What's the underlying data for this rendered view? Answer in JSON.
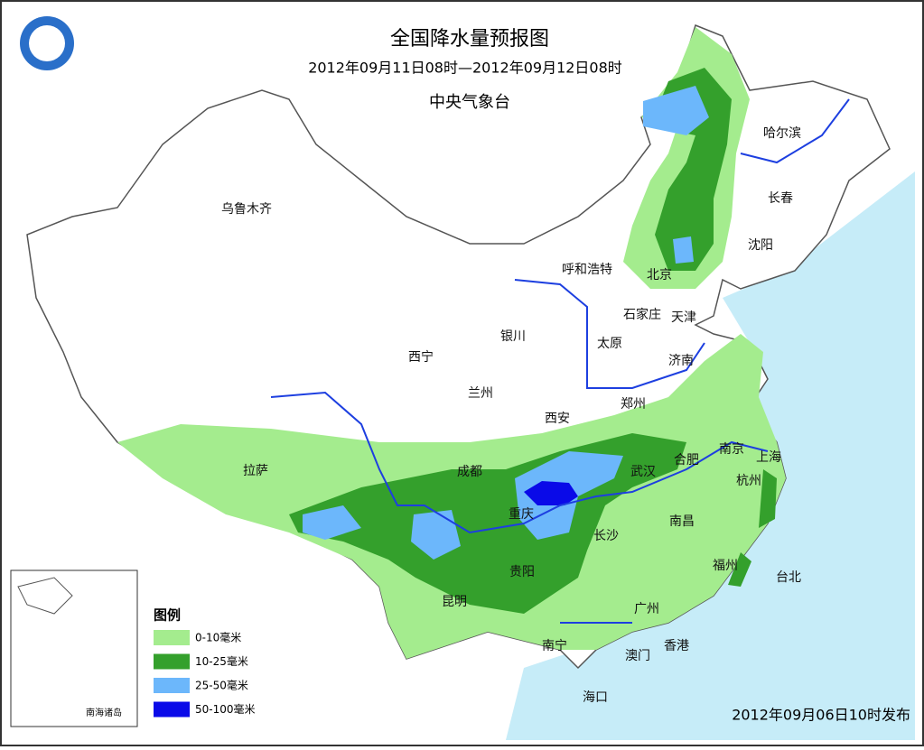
{
  "header": {
    "title": "全国降水量预报图",
    "period": "2012年09月11日08时—2012年09月12日08时",
    "issuer": "中央气象台"
  },
  "cities": [
    {
      "label": "乌鲁木齐"
    },
    {
      "label": "哈尔滨"
    },
    {
      "label": "长春"
    },
    {
      "label": "沈阳"
    },
    {
      "label": "呼和浩特"
    },
    {
      "label": "北京"
    },
    {
      "label": "石家庄"
    },
    {
      "label": "天津"
    },
    {
      "label": "银川"
    },
    {
      "label": "太原"
    },
    {
      "label": "西宁"
    },
    {
      "label": "济南"
    },
    {
      "label": "兰州"
    },
    {
      "label": "郑州"
    },
    {
      "label": "西安"
    },
    {
      "label": "拉萨"
    },
    {
      "label": "成都"
    },
    {
      "label": "合肥"
    },
    {
      "label": "南京"
    },
    {
      "label": "上海"
    },
    {
      "label": "武汉"
    },
    {
      "label": "杭州"
    },
    {
      "label": "重庆"
    },
    {
      "label": "南昌"
    },
    {
      "label": "长沙"
    },
    {
      "label": "贵阳"
    },
    {
      "label": "福州"
    },
    {
      "label": "台北"
    },
    {
      "label": "昆明"
    },
    {
      "label": "广州"
    },
    {
      "label": "南宁"
    },
    {
      "label": "澳门"
    },
    {
      "label": "香港"
    },
    {
      "label": "海口"
    }
  ],
  "legend": {
    "title": "图例",
    "items": [
      {
        "label": "0-10毫米",
        "color": "#a4ec8e"
      },
      {
        "label": "10-25毫米",
        "color": "#34a02c"
      },
      {
        "label": "25-50毫米",
        "color": "#6cb7fb"
      },
      {
        "label": "50-100毫米",
        "color": "#0a0ae8"
      }
    ]
  },
  "inset": {
    "label": "南海诸岛"
  },
  "footer": {
    "issued": "2012年09月06日10时发布"
  }
}
